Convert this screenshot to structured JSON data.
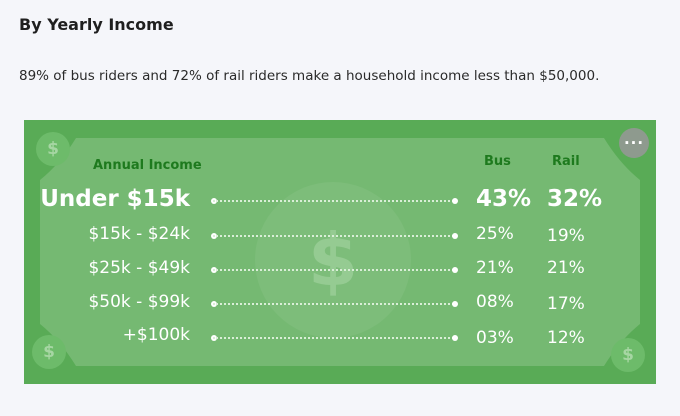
{
  "heading": "By Yearly Income",
  "intro": "89% of bus riders and 72% of rail riders make a household income less than $50,000.",
  "graphic": {
    "column_income": "Annual Income",
    "column_bus": "Bus",
    "column_rail": "Rail",
    "dollar_glyph": "$",
    "more_label": "···",
    "rows": [
      {
        "category": "Under $15k",
        "bus": "43%",
        "rail": "32%"
      },
      {
        "category": "$15k - $24k",
        "bus": "25%",
        "rail": "19%"
      },
      {
        "category": "$25k - $49k",
        "bus": "21%",
        "rail": "21%"
      },
      {
        "category": "$50k - $99k",
        "bus": "08%",
        "rail": "17%"
      },
      {
        "category": "+$100k",
        "bus": "03%",
        "rail": "12%"
      }
    ]
  },
  "colors": {
    "bill_green": "#59ab56",
    "bill_light": "#7dbd7a",
    "label_green": "#1e7a1e"
  }
}
